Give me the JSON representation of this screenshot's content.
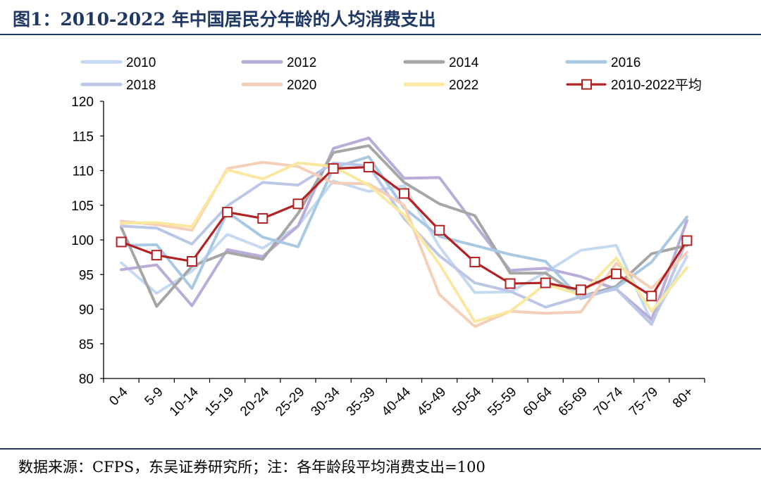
{
  "header": {
    "title": "图1：2010-2022 年中国居民分年龄的人均消费支出"
  },
  "footer": {
    "source": "数据来源：CFPS，东吴证券研究所；注：各年龄段平均消费支出=100"
  },
  "chart_data": {
    "type": "line",
    "title": "",
    "xlabel": "",
    "ylabel": "",
    "ylim": [
      80,
      120
    ],
    "yticks": [
      80,
      85,
      90,
      95,
      100,
      105,
      110,
      115,
      120
    ],
    "categories": [
      "0-4",
      "5-9",
      "10-14",
      "15-19",
      "20-24",
      "25-29",
      "30-34",
      "35-39",
      "40-44",
      "45-49",
      "50-54",
      "55-59",
      "60-64",
      "65-69",
      "70-74",
      "75-79",
      "80+"
    ],
    "legend_position": "top",
    "series": [
      {
        "name": "2010",
        "color": "#c5daf0",
        "values": [
          96.7,
          92.3,
          95.5,
          100.8,
          98.8,
          102.0,
          108.5,
          107.0,
          107.8,
          99.0,
          92.4,
          92.5,
          95.3,
          98.5,
          99.2,
          88.2,
          97.6
        ]
      },
      {
        "name": "2012",
        "color": "#b9acd9",
        "values": [
          95.7,
          96.4,
          90.5,
          98.6,
          97.6,
          102.0,
          113.2,
          114.7,
          108.9,
          109.0,
          102.2,
          95.6,
          95.9,
          94.7,
          92.9,
          88.5,
          102.8
        ]
      },
      {
        "name": "2014",
        "color": "#a6a6a6",
        "values": [
          101.8,
          90.4,
          96.2,
          98.2,
          97.2,
          103.8,
          112.6,
          113.6,
          108.3,
          105.2,
          103.5,
          95.2,
          95.2,
          91.8,
          93.3,
          98.0,
          99.2
        ]
      },
      {
        "name": "2016",
        "color": "#a9c9e3",
        "values": [
          99.2,
          99.3,
          93.0,
          104.0,
          100.4,
          99.0,
          110.4,
          112.0,
          104.6,
          100.5,
          99.2,
          97.9,
          96.9,
          91.5,
          93.1,
          96.8,
          103.3
        ]
      },
      {
        "name": "2018",
        "color": "#bcc6e6",
        "values": [
          102.0,
          101.7,
          99.4,
          104.9,
          108.3,
          107.9,
          111.1,
          110.7,
          103.1,
          97.7,
          93.8,
          92.6,
          90.3,
          91.8,
          92.9,
          87.8,
          100.0
        ]
      },
      {
        "name": "2020",
        "color": "#f5cfb8",
        "values": [
          102.7,
          102.2,
          101.4,
          110.3,
          111.2,
          110.6,
          108.2,
          108.1,
          105.0,
          92.1,
          87.5,
          89.7,
          89.4,
          89.6,
          96.6,
          93.0,
          98.2
        ]
      },
      {
        "name": "2022",
        "color": "#fae8a0",
        "values": [
          102.4,
          102.5,
          101.9,
          110.1,
          108.8,
          111.1,
          110.6,
          107.9,
          103.6,
          96.5,
          88.2,
          89.7,
          93.6,
          92.1,
          97.4,
          89.7,
          96.0
        ]
      },
      {
        "name": "2010-2022平均",
        "color": "#b22222",
        "values": [
          99.7,
          97.8,
          96.9,
          104.0,
          103.1,
          105.2,
          110.3,
          110.5,
          106.7,
          101.4,
          96.8,
          93.7,
          93.8,
          92.8,
          95.1,
          91.9,
          99.9
        ]
      }
    ]
  }
}
